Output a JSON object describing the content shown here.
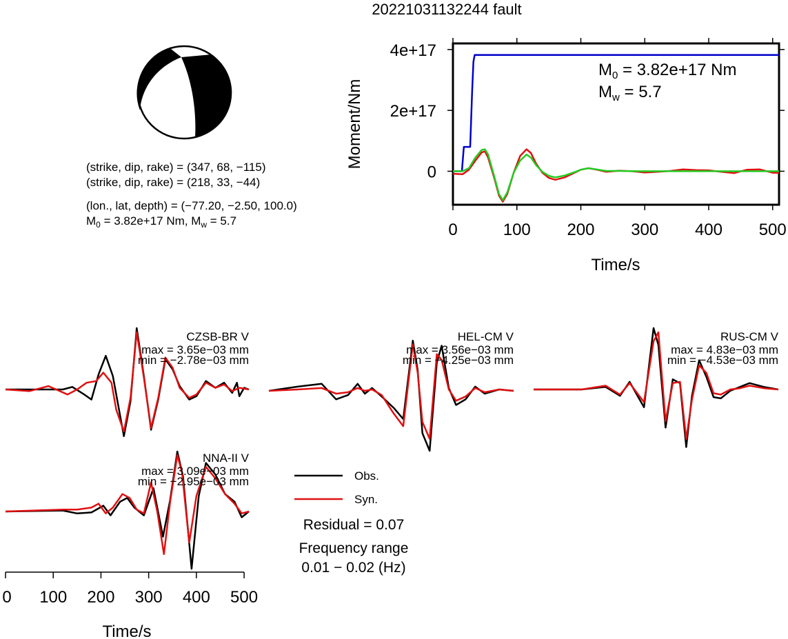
{
  "page": {
    "title": "20221031132244 fault"
  },
  "mechanism": {
    "nodal_plane_1": "(strike, dip, rake) = (347, 68, −115)",
    "nodal_plane_2": "(strike, dip, rake) = (218, 33, −44)",
    "location": "(lon., lat, depth) = (−77.20, −2.50, 100.0)",
    "moment_line": {
      "m0_symbol": "M",
      "m0_sub": "0",
      "m0_value": " = 3.82e+17 Nm, M",
      "mw_sub": "w",
      "mw_value": " = 5.7"
    },
    "colors": {
      "compression": "#000000",
      "dilatation": "#ffffff"
    }
  },
  "moment_annotation": {
    "m0_symbol": "M",
    "m0_sub": "0",
    "m0_value": " = 3.82e+17 Nm",
    "mw_symbol": "M",
    "mw_sub": "w",
    "mw_value": " = 5.7"
  },
  "legend": {
    "obs_label": "Obs.",
    "syn_label": "Syn.",
    "residual": "Residual = 0.07",
    "freq_title": "Frequency range",
    "freq_value": "0.01 − 0.02 (Hz)",
    "colors": {
      "obs": "#000000",
      "syn": "#e01010"
    }
  },
  "chart_data": [
    {
      "type": "line",
      "id": "moment-rate",
      "xlabel": "Time/s",
      "ylabel": "Moment/Nm",
      "xlim": [
        0,
        510
      ],
      "ylim": [
        -1.1e+17,
        4.2e+17
      ],
      "x_ticks": [
        0,
        100,
        200,
        300,
        400,
        500
      ],
      "x_tick_labels": [
        "0",
        "100",
        "200",
        "300",
        "400",
        "500"
      ],
      "y_ticks": [
        0,
        2e+17,
        4e+17
      ],
      "y_tick_labels": [
        "0",
        "2e+17",
        "4e+17"
      ],
      "series": [
        {
          "color": "#0000cc",
          "x": [
            0,
            14,
            17,
            20,
            27,
            30,
            32,
            34,
            510
          ],
          "y": [
            0,
            0,
            8e+16,
            8e+16,
            8e+16,
            2.6e+17,
            3.6e+17,
            3.82e+17,
            3.82e+17
          ]
        },
        {
          "color": "#e01010",
          "x": [
            0,
            15,
            25,
            35,
            45,
            50,
            55,
            65,
            72,
            78,
            85,
            95,
            105,
            115,
            122,
            130,
            140,
            150,
            160,
            175,
            190,
            200,
            212,
            225,
            240,
            260,
            280,
            300,
            320,
            340,
            360,
            380,
            400,
            420,
            440,
            460,
            480,
            500,
            510
          ],
          "y": [
            -8000000000000000.0,
            -1e+16,
            5000000000000000.0,
            3.5e+16,
            6.2e+16,
            6.5e+16,
            4.5e+16,
            -2.5e+16,
            -8e+16,
            -1e+17,
            -7.5e+16,
            -5000000000000000.0,
            5e+16,
            7.2e+16,
            6e+16,
            2.5e+16,
            -5000000000000000.0,
            -2.2e+16,
            -2.8e+16,
            -2e+16,
            -5000000000000000.0,
            5000000000000000.0,
            1e+16,
            5000000000000000.0,
            -2000000000000000.0,
            2000000000000000.0,
            0.0,
            -4000000000000000.0,
            -2000000000000000.0,
            1000000000000000.0,
            6000000000000000.0,
            4000000000000000.0,
            3000000000000000.0,
            -2000000000000000.0,
            -6000000000000000.0,
            5000000000000000.0,
            6000000000000000.0,
            -5000000000000000.0,
            -5000000000000000.0
          ]
        },
        {
          "color": "#22cc22",
          "x": [
            0,
            15,
            25,
            35,
            45,
            50,
            55,
            65,
            72,
            78,
            85,
            95,
            105,
            115,
            122,
            130,
            140,
            150,
            160,
            175,
            190,
            200,
            212,
            225,
            240,
            260,
            280,
            300,
            340,
            380,
            420,
            460,
            510
          ],
          "y": [
            0,
            0,
            1e+16,
            4.5e+16,
            7e+16,
            7.2e+16,
            5.5e+16,
            -2e+16,
            -7.5e+16,
            -9.5e+16,
            -7e+16,
            -5000000000000000.0,
            3.5e+16,
            5.5e+16,
            4.5e+16,
            2e+16,
            -2000000000000000.0,
            -1.5e+16,
            -2e+16,
            -1.4e+16,
            -3000000000000000.0,
            5000000000000000.0,
            1e+16,
            6000000000000000.0,
            1000000000000000.0,
            1000000000000000.0,
            0.0,
            0.0,
            0.0,
            0.0,
            0.0,
            0.0,
            0.0
          ]
        }
      ]
    },
    {
      "type": "line",
      "id": "waveform-fits",
      "xlabel": "Time/s",
      "xlim": [
        0,
        510
      ],
      "x_ticks": [
        0,
        100,
        200,
        300,
        400,
        500
      ],
      "x_tick_labels": [
        "0",
        "100",
        "200",
        "300",
        "400",
        "500"
      ],
      "stations": [
        {
          "name": "CZSB-BR V",
          "max_label": "max = 3.65e−03 mm",
          "min_label": "min = −2.78e−03 mm",
          "max": 3.65,
          "min": -2.78,
          "obs": {
            "x": [
              0,
              120,
              140,
              165,
              180,
              195,
              210,
              225,
              248,
              262,
              275,
              290,
              305,
              320,
              335,
              350,
              365,
              385,
              400,
              420,
              440,
              458,
              475,
              485,
              490,
              500,
              510
            ],
            "y": [
              0,
              0,
              0.15,
              -0.3,
              -0.6,
              0.9,
              2.0,
              0.8,
              -2.78,
              -0.7,
              3.65,
              0.8,
              -2.4,
              -0.6,
              1.8,
              1.2,
              0.2,
              -0.6,
              -0.4,
              0.5,
              0.1,
              0.4,
              -0.2,
              0.4,
              -0.4,
              0.1,
              0
            ]
          },
          "syn": {
            "x": [
              0,
              50,
              90,
              130,
              150,
              170,
              190,
              205,
              222,
              232,
              248,
              262,
              275,
              290,
              305,
              320,
              335,
              350,
              365,
              385,
              400,
              420,
              440,
              458,
              475,
              490,
              510
            ],
            "y": [
              0,
              -0.1,
              0.2,
              -0.3,
              0,
              0.4,
              0.5,
              1.0,
              0.4,
              -1.2,
              -2.5,
              -0.5,
              3.4,
              0.7,
              -2.3,
              -0.5,
              1.9,
              1.3,
              0.1,
              -0.5,
              -0.3,
              0.4,
              0.1,
              0.3,
              -0.1,
              0.1,
              0
            ]
          }
        },
        {
          "name": "HEL-CM V",
          "max_label": "max = 3.56e−03 mm",
          "min_label": "min = −4.25e−03 mm",
          "max": 3.56,
          "min": -4.25,
          "obs": {
            "x": [
              0,
              60,
              110,
              140,
              165,
              185,
              200,
              215,
              235,
              260,
              280,
              300,
              310,
              320,
              335,
              350,
              360,
              375,
              390,
              410,
              430,
              450,
              480,
              510
            ],
            "y": [
              0,
              0.3,
              0.5,
              -0.6,
              -0.3,
              0.5,
              -0.2,
              0.2,
              -0.4,
              -1.2,
              -2.0,
              3.56,
              1.5,
              -3.0,
              -4.25,
              2.0,
              3.2,
              0.2,
              -1.0,
              -0.6,
              0.3,
              -0.2,
              0.1,
              0
            ]
          },
          "syn": {
            "x": [
              0,
              60,
              110,
              140,
              165,
              185,
              200,
              215,
              235,
              260,
              280,
              300,
              310,
              320,
              335,
              350,
              360,
              375,
              390,
              410,
              430,
              450,
              480,
              510
            ],
            "y": [
              0,
              0.1,
              0.2,
              -0.2,
              -0.1,
              0.2,
              0,
              0.1,
              -0.3,
              -1.6,
              -2.5,
              3.3,
              1.3,
              -2.2,
              -3.4,
              2.6,
              2.2,
              0.1,
              -0.7,
              -0.4,
              0.2,
              -0.1,
              0.1,
              0
            ]
          }
        },
        {
          "name": "RUS-CM V",
          "max_label": "max = 4.83e−03 mm",
          "min_label": "min = −4.53e−03 mm",
          "max": 4.83,
          "min": -4.53,
          "obs": {
            "x": [
              0,
              100,
              150,
              180,
              200,
              230,
              250,
              260,
              275,
              290,
              305,
              318,
              330,
              345,
              360,
              375,
              390,
              410,
              430,
              450,
              480,
              510
            ],
            "y": [
              0,
              0,
              0.2,
              -0.5,
              0.6,
              -1.4,
              4.83,
              3.5,
              -3.0,
              0.8,
              0.5,
              -4.53,
              -0.5,
              2.3,
              1.0,
              -0.6,
              -0.7,
              -0.1,
              0.2,
              0.5,
              0.2,
              0
            ]
          },
          "syn": {
            "x": [
              0,
              100,
              150,
              180,
              200,
              230,
              250,
              260,
              275,
              290,
              305,
              318,
              330,
              345,
              360,
              375,
              390,
              410,
              430,
              450,
              480,
              510
            ],
            "y": [
              0,
              0,
              0.3,
              -0.4,
              0.5,
              -1.0,
              3.8,
              4.5,
              -2.5,
              0.5,
              0.6,
              -3.9,
              -0.8,
              1.9,
              1.3,
              -0.3,
              -0.4,
              0.0,
              0.1,
              0.3,
              0.1,
              0
            ]
          }
        },
        {
          "name": "NNA-II V",
          "max_label": "max = 3.09e−03 mm",
          "min_label": "min = −2.95e−03 mm",
          "max": 3.09,
          "min": -2.95,
          "obs": {
            "x": [
              0,
              120,
              150,
              180,
              205,
              220,
              240,
              255,
              270,
              290,
              310,
              330,
              345,
              360,
              372,
              390,
              405,
              420,
              440,
              460,
              480,
              495,
              510
            ],
            "y": [
              0,
              0.05,
              -0.1,
              -0.05,
              0.3,
              -0.2,
              0.5,
              0.7,
              0.2,
              -0.2,
              1.2,
              -1.3,
              0.6,
              3.09,
              1.8,
              -2.95,
              0.8,
              2.5,
              1.9,
              0.9,
              0.5,
              -0.3,
              0
            ]
          },
          "syn": {
            "x": [
              0,
              120,
              150,
              180,
              195,
              210,
              225,
              245,
              260,
              275,
              290,
              305,
              318,
              332,
              345,
              360,
              370,
              385,
              400,
              420,
              440,
              460,
              480,
              495,
              510
            ],
            "y": [
              0,
              0.1,
              0.1,
              0.2,
              0.4,
              -0.1,
              0.2,
              0.9,
              0.7,
              0.1,
              -0.1,
              1.5,
              0.0,
              -2.2,
              0.5,
              2.9,
              2.0,
              -1.6,
              0.8,
              2.3,
              1.7,
              0.9,
              0.4,
              -0.1,
              0
            ]
          }
        }
      ]
    }
  ]
}
